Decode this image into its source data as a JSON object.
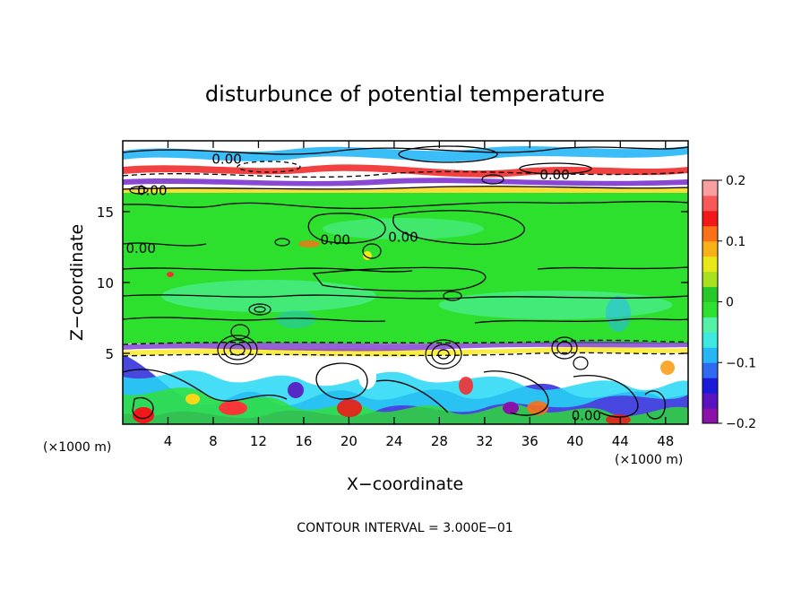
{
  "chart_data": {
    "type": "heatmap",
    "title": "disturbunce of potential temperature",
    "xlabel": "X−coordinate",
    "ylabel": "Z−coordinate",
    "x_unit": "(×1000 m)",
    "z_unit": "(×1000 m)",
    "xlim": [
      0,
      50
    ],
    "ylim": [
      0,
      20
    ],
    "x_ticks": [
      4,
      8,
      12,
      16,
      20,
      24,
      28,
      32,
      36,
      40,
      44,
      48
    ],
    "y_ticks": [
      5,
      10,
      15
    ],
    "colorbar": {
      "range": [
        -0.2,
        0.2
      ],
      "ticks": [
        {
          "value": 0.2,
          "label": "0.2"
        },
        {
          "value": 0.1,
          "label": "0.1"
        },
        {
          "value": 0.0,
          "label": "0"
        },
        {
          "value": -0.1,
          "label": "−0.1"
        },
        {
          "value": -0.2,
          "label": "−0.2"
        }
      ],
      "colors": [
        "#8a12a8",
        "#5a14c0",
        "#1a1ad8",
        "#2f6af0",
        "#26b6f6",
        "#3ce8e0",
        "#54f0a8",
        "#30e030",
        "#28c828",
        "#a8e020",
        "#e8e818",
        "#f8b018",
        "#f87018",
        "#f01818",
        "#f85858",
        "#f8a0a0"
      ]
    },
    "contour_labels": [
      {
        "text": "0.00",
        "x": 9.2,
        "z": 18.7
      },
      {
        "text": "0.00",
        "x": 38.2,
        "z": 17.6
      },
      {
        "text": "0.00",
        "x": 2.6,
        "z": 16.5
      },
      {
        "text": "0.00",
        "x": 1.6,
        "z": 12.4
      },
      {
        "text": "0.00",
        "x": 18.8,
        "z": 13.0
      },
      {
        "text": "0.00",
        "x": 24.8,
        "z": 13.2
      },
      {
        "text": "0.00",
        "x": 41.0,
        "z": 0.6
      }
    ],
    "footnote": "CONTOUR INTERVAL = 3.000E−01"
  }
}
